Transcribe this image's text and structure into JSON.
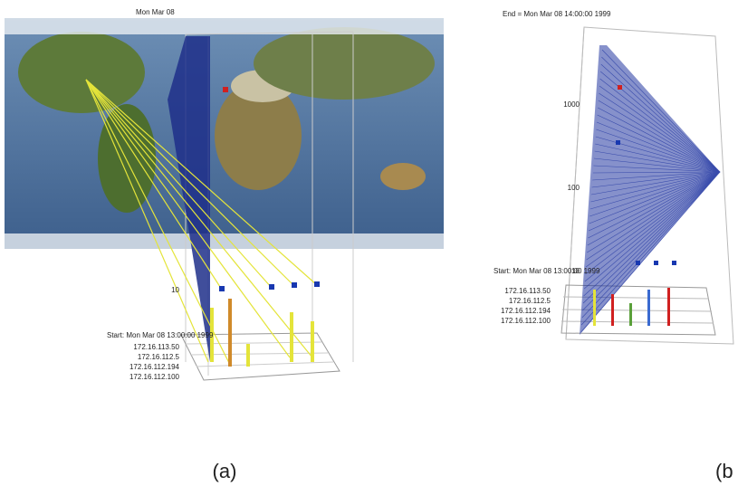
{
  "panel_a": {
    "top_label": "Mon Mar 08",
    "start_label": "Start: Mon Mar 08 13:00:00 1999",
    "hosts": [
      "172.16.113.50",
      "172.16.112.5",
      "172.16.112.194",
      "172.16.112.100"
    ],
    "axis_label": "10",
    "caption": "(a)"
  },
  "panel_b": {
    "end_label": "End = Mon Mar 08 14:00:00 1999",
    "start_label": "Start: Mon Mar 08 13:00:00 1999",
    "hosts": [
      "172.16.113.50",
      "172.16.112.5",
      "172.16.112.194",
      "172.16.112.100"
    ],
    "axis_labels": [
      "1000",
      "100",
      "10"
    ],
    "caption": "(b"
  }
}
